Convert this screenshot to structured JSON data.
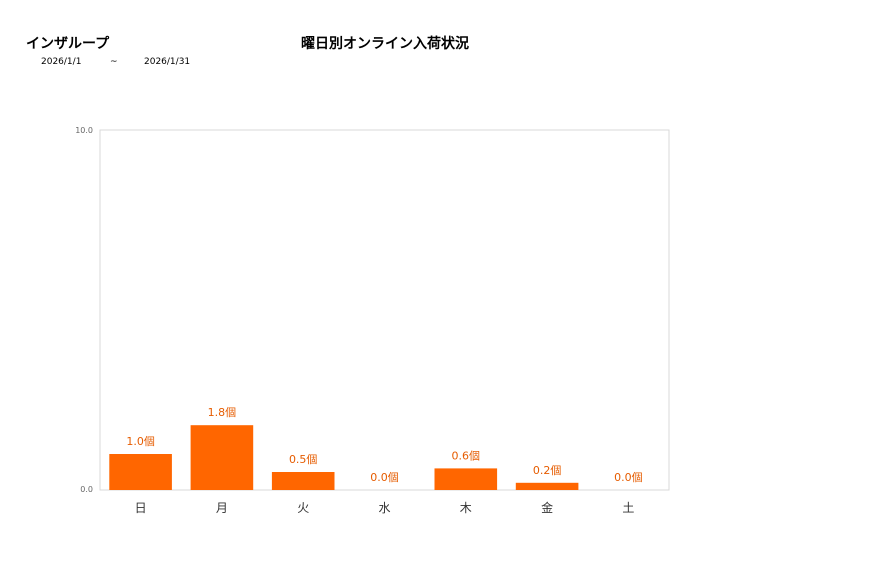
{
  "header": {
    "group_name": "インザループ",
    "date_from": "2026/1/1",
    "separator": "~",
    "date_to": "2026/1/31"
  },
  "colors": {
    "bar": "#ff6600",
    "label": "#e65c00",
    "axis": "#cccccc"
  },
  "chart_data": {
    "type": "bar",
    "title": "曜日別オンライン入荷状況",
    "categories": [
      "日",
      "月",
      "火",
      "水",
      "木",
      "金",
      "土"
    ],
    "values": [
      1.0,
      1.8,
      0.5,
      0.0,
      0.6,
      0.2,
      0.0
    ],
    "data_labels": [
      "1.0個",
      "1.8個",
      "0.5個",
      "0.0個",
      "0.6個",
      "0.2個",
      "0.0個"
    ],
    "ylim": [
      0,
      10
    ],
    "yticks": [
      "0.0",
      "10.0"
    ],
    "xlabel": "",
    "ylabel": "",
    "grid": false,
    "legend": "none"
  }
}
